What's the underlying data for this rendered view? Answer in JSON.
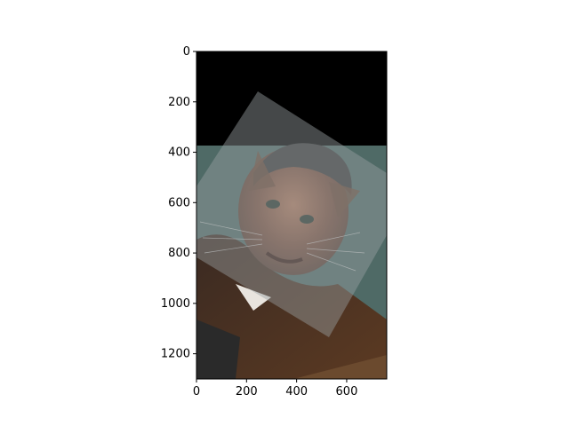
{
  "image": {
    "description_colors": {
      "background": "#000000",
      "overlay": "#8a8f90",
      "wall_teal": "#4f6e6a",
      "skin": "#8a5a44"
    }
  },
  "axes": {
    "x_range": [
      0,
      760
    ],
    "y_range": [
      1300,
      0
    ],
    "x_ticks": [
      {
        "value": 0,
        "label": "0"
      },
      {
        "value": 200,
        "label": "200"
      },
      {
        "value": 400,
        "label": "400"
      },
      {
        "value": 600,
        "label": "600"
      }
    ],
    "y_ticks": [
      {
        "value": 0,
        "label": "0"
      },
      {
        "value": 200,
        "label": "200"
      },
      {
        "value": 400,
        "label": "400"
      },
      {
        "value": 600,
        "label": "600"
      },
      {
        "value": 800,
        "label": "800"
      },
      {
        "value": 1000,
        "label": "1000"
      },
      {
        "value": 1200,
        "label": "1200"
      }
    ]
  }
}
